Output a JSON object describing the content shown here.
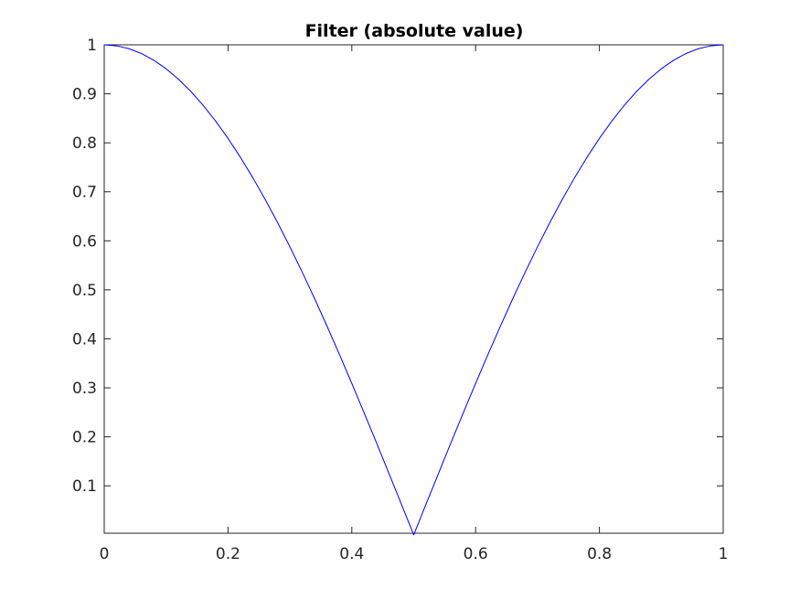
{
  "chart_data": {
    "type": "line",
    "title": "Filter (absolute value)",
    "xlabel": "",
    "ylabel": "",
    "xlim": [
      0,
      1
    ],
    "ylim": [
      0.0033,
      1
    ],
    "xticks": [
      0,
      0.2,
      0.4,
      0.6,
      0.8,
      1
    ],
    "xtick_labels": [
      "0",
      "0.2",
      "0.4",
      "0.6",
      "0.8",
      "1"
    ],
    "yticks": [
      0.1,
      0.2,
      0.3,
      0.4,
      0.5,
      0.6,
      0.7,
      0.8,
      0.9,
      1
    ],
    "ytick_labels": [
      "0.1",
      "0.2",
      "0.3",
      "0.4",
      "0.5",
      "0.6",
      "0.7",
      "0.8",
      "0.9",
      "1"
    ],
    "grid": false,
    "legend": "none",
    "series": [
      {
        "color": "#0000ff",
        "function": "|cos(pi*x)|",
        "x": [
          0,
          0.02,
          0.04,
          0.06,
          0.08,
          0.1,
          0.12,
          0.14,
          0.16,
          0.18,
          0.2,
          0.22,
          0.24,
          0.26,
          0.28,
          0.3,
          0.32,
          0.34,
          0.36,
          0.38,
          0.4,
          0.42,
          0.44,
          0.46,
          0.48,
          0.5,
          0.52,
          0.54,
          0.56,
          0.58,
          0.6,
          0.62,
          0.64,
          0.66,
          0.68,
          0.7,
          0.72,
          0.74,
          0.76,
          0.78,
          0.8,
          0.82,
          0.84,
          0.86,
          0.88,
          0.9,
          0.92,
          0.94,
          0.96,
          0.98,
          1
        ],
        "y": [
          1.0,
          0.998,
          0.9921,
          0.9823,
          0.9686,
          0.9511,
          0.9298,
          0.9048,
          0.8763,
          0.8443,
          0.809,
          0.7705,
          0.729,
          0.6845,
          0.6374,
          0.5878,
          0.5358,
          0.4818,
          0.4258,
          0.3681,
          0.309,
          0.2487,
          0.1874,
          0.1253,
          0.0628,
          0.0,
          0.0628,
          0.1253,
          0.1874,
          0.2487,
          0.309,
          0.3681,
          0.4258,
          0.4818,
          0.5358,
          0.5878,
          0.6374,
          0.6845,
          0.729,
          0.7705,
          0.809,
          0.8443,
          0.8763,
          0.9048,
          0.9298,
          0.9511,
          0.9686,
          0.9823,
          0.9921,
          0.998,
          1.0
        ]
      }
    ]
  }
}
